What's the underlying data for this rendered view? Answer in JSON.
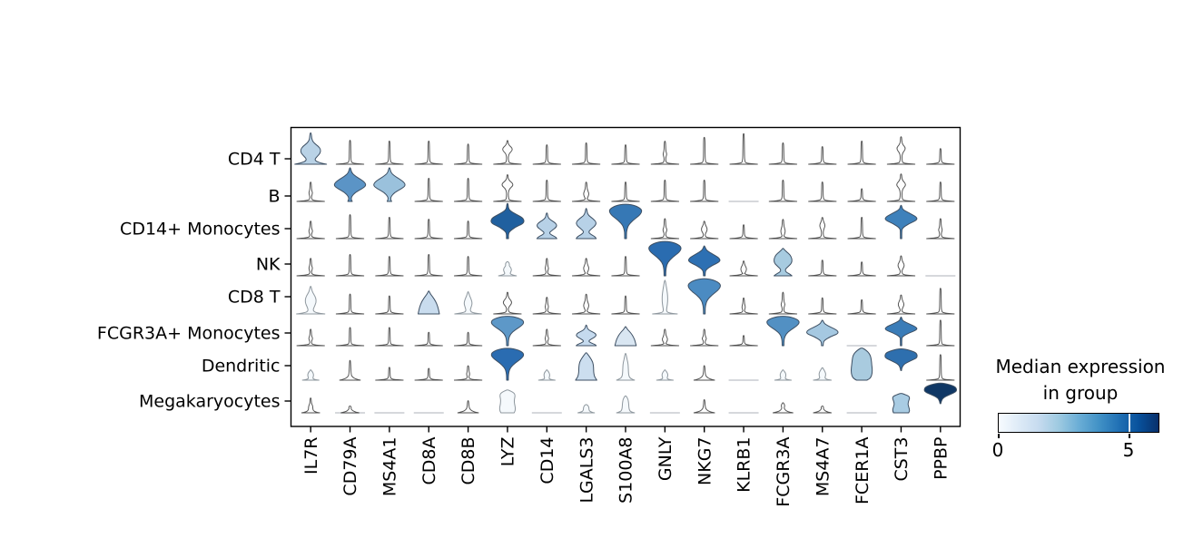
{
  "chart_data": {
    "type": "stacked_violin",
    "description": "Stacked violin plot of marker gene expression per cell type (scanpy-style). Fill color encodes median expression in group (Blues colormap).",
    "genes": [
      "IL7R",
      "CD79A",
      "MS4A1",
      "CD8A",
      "CD8B",
      "LYZ",
      "CD14",
      "LGALS3",
      "S100A8",
      "GNLY",
      "NKG7",
      "KLRB1",
      "FCGR3A",
      "MS4A7",
      "FCER1A",
      "CST3",
      "PPBP"
    ],
    "cell_types": [
      "CD4 T",
      "B",
      "CD14+ Monocytes",
      "NK",
      "CD8 T",
      "FCGR3A+ Monocytes",
      "Dendritic",
      "Megakaryocytes"
    ],
    "colorbar": {
      "title_lines": [
        "Median expression",
        "in group"
      ],
      "tick_labels": [
        "0",
        "5"
      ],
      "vmin": 0,
      "vmax": 6.2,
      "cmap": "Blues",
      "cmap_stops": [
        "#f7fbff",
        "#deebf7",
        "#c6dbef",
        "#9ecae1",
        "#6baed6",
        "#4292c6",
        "#2171b5",
        "#08519c",
        "#08306b"
      ]
    },
    "legend_position": "right",
    "grid": false,
    "violins": [
      [
        [
          "onion",
          "#b9d2e6"
        ],
        [
          "sp",
          0.62
        ],
        [
          "sp",
          0.6
        ],
        [
          "sp",
          0.6
        ],
        [
          "sp",
          0.52
        ],
        [
          "ds",
          0.62,
          0.4,
          0.35
        ],
        [
          "sp",
          0.5
        ],
        [
          "sp",
          0.55
        ],
        [
          "sp",
          0.5
        ],
        [
          "es",
          0.6,
          0.12
        ],
        [
          "sp",
          0.7
        ],
        [
          "sp",
          0.8
        ],
        [
          "sp",
          0.55
        ],
        [
          "sp",
          0.45
        ],
        [
          "sp",
          0.6
        ],
        [
          "ds",
          0.72,
          0.42,
          0.3
        ],
        [
          "sp",
          0.4
        ]
      ],
      [
        [
          "es",
          0.5,
          0.12
        ],
        [
          "kite",
          "#5b94c6"
        ],
        [
          "kite",
          "#9ac1dc"
        ],
        [
          "sp",
          0.6
        ],
        [
          "sp",
          0.6
        ],
        [
          "ds",
          0.7,
          0.45,
          0.4
        ],
        [
          "sp",
          0.55
        ],
        [
          "ds",
          0.5,
          0.2,
          0.18
        ],
        [
          "sp",
          0.5
        ],
        [
          "sp",
          0.55
        ],
        [
          "sp",
          0.55
        ],
        [
          "fl"
        ],
        [
          "sp",
          0.55
        ],
        [
          "sp",
          0.5
        ],
        [
          "sp",
          0.32
        ],
        [
          "ds",
          0.72,
          0.45,
          0.32
        ],
        [
          "sp",
          0.5
        ]
      ],
      [
        [
          "es",
          0.45,
          0.12
        ],
        [
          "sp",
          0.62
        ],
        [
          "sp",
          0.55
        ],
        [
          "sp",
          0.5
        ],
        [
          "sp",
          0.45
        ],
        [
          "kiteD",
          "#20609f"
        ],
        [
          "hour",
          "#b7d1e7",
          0.85
        ],
        [
          "hour",
          "#b7d1e7",
          1.0
        ],
        [
          "fan",
          "#3678b5"
        ],
        [
          "es",
          0.52,
          0.13
        ],
        [
          "ds",
          0.45,
          0.25,
          0.2
        ],
        [
          "sp",
          0.35
        ],
        [
          "ds",
          0.5,
          0.2,
          0.15
        ],
        [
          "ds",
          0.55,
          0.35,
          0.18
        ],
        [
          "sp",
          0.55
        ],
        [
          "kiteH",
          "#3e81bb"
        ],
        [
          "es",
          0.52,
          0.12
        ]
      ],
      [
        [
          "es",
          0.45,
          0.12
        ],
        [
          "sp",
          0.55
        ],
        [
          "sp",
          0.5
        ],
        [
          "sp",
          0.55
        ],
        [
          "sp",
          0.5
        ],
        [
          "wavy"
        ],
        [
          "es",
          0.45,
          0.11
        ],
        [
          "ds",
          0.45,
          0.2,
          0.18
        ],
        [
          "sp",
          0.5
        ],
        [
          "fan",
          "#2a6cb0"
        ],
        [
          "kiteN",
          "#2d70b3"
        ],
        [
          "ds",
          0.38,
          0.18,
          0.2
        ],
        [
          "mush",
          "#a7cbe0"
        ],
        [
          "sp",
          0.4
        ],
        [
          "sp",
          0.35
        ],
        [
          "ds",
          0.52,
          0.28,
          0.22
        ],
        [
          "fl"
        ]
      ],
      [
        [
          "onionW"
        ],
        [
          "sp",
          0.5
        ],
        [
          "sp",
          0.45
        ],
        [
          "dome",
          "#c9dcee"
        ],
        [
          "dropW"
        ],
        [
          "ds",
          0.55,
          0.3,
          0.3
        ],
        [
          "es",
          0.42,
          0.11
        ],
        [
          "ds",
          0.5,
          0.22,
          0.18
        ],
        [
          "sp",
          0.45
        ],
        [
          "tallW"
        ],
        [
          "fan",
          "#4b8bc2"
        ],
        [
          "es",
          0.4,
          0.11
        ],
        [
          "es",
          0.55,
          0.13
        ],
        [
          "sp",
          0.4
        ],
        [
          "sp",
          0.35
        ],
        [
          "ds",
          0.48,
          0.25,
          0.2
        ],
        [
          "sp",
          0.65
        ]
      ],
      [
        [
          "es",
          0.5,
          0.13
        ],
        [
          "sp",
          0.55
        ],
        [
          "sp",
          0.55
        ],
        [
          "sp",
          0.4
        ],
        [
          "sp",
          0.4
        ],
        [
          "fan",
          "#5d98c8"
        ],
        [
          "es",
          0.5,
          0.12
        ],
        [
          "hour",
          "#c5daee",
          0.8
        ],
        [
          "dome",
          "#d9e6f2"
        ],
        [
          "ds",
          0.5,
          0.2,
          0.18
        ],
        [
          "es",
          0.5,
          0.14
        ],
        [
          "sp",
          0.3
        ],
        [
          "fan",
          "#5290c3"
        ],
        [
          "kiteN",
          "#a5c8e1"
        ],
        [
          "fl"
        ],
        [
          "kiteH",
          "#3a7cb8"
        ],
        [
          "sp",
          0.78
        ]
      ],
      [
        [
          "bump"
        ],
        [
          "tent",
          0.55
        ],
        [
          "sp",
          0.35
        ],
        [
          "sp",
          0.32
        ],
        [
          "es",
          0.4,
          0.1
        ],
        [
          "fan",
          "#2a6cb1"
        ],
        [
          "bump"
        ],
        [
          "mound",
          "#ccdeef"
        ],
        [
          "bellW"
        ],
        [
          "bump"
        ],
        [
          "tent",
          0.4
        ],
        [
          "fl"
        ],
        [
          "bump"
        ],
        [
          "bump2"
        ],
        [
          "blob",
          "#a9cbdf"
        ],
        [
          "fanF",
          "#2e6fae"
        ],
        [
          "sp",
          0.72
        ]
      ],
      [
        [
          "funnel"
        ],
        [
          "flx"
        ],
        [
          "fl"
        ],
        [
          "fl"
        ],
        [
          "tent",
          0.35
        ],
        [
          "boxW"
        ],
        [
          "fl"
        ],
        [
          "step"
        ],
        [
          "tower"
        ],
        [
          "fl"
        ],
        [
          "tent",
          0.38
        ],
        [
          "fl"
        ],
        [
          "tent2"
        ],
        [
          "tent3"
        ],
        [
          "fl"
        ],
        [
          "box",
          "#a9cce3"
        ],
        [
          "fanF",
          "#0f3765"
        ]
      ]
    ]
  }
}
